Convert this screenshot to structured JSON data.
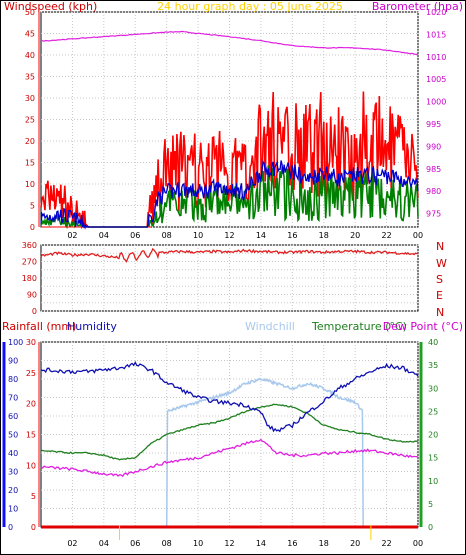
{
  "window": {
    "title": "24 hour graph day : 05 June 2025"
  },
  "labels": {
    "windspeed": "Windspeed (kph)",
    "barometer": "Barometer (hpa)",
    "rainfall": "Rainfall (mm)",
    "humidity": "Humidity",
    "windchill": "Windchill",
    "temperature": "Temperature (°C)",
    "dewpoint": "Dew Point (°C)",
    "compass": [
      "N",
      "W",
      "S",
      "E",
      "N"
    ]
  },
  "colors": {
    "gust": "#ff0000",
    "avg_wind": "#008000",
    "wind_mid": "#0000cc",
    "barometer": "#e020e0",
    "direction": "#e02020",
    "humidity": "#1010b0",
    "windchill": "#a8c8ec",
    "temperature": "#208020",
    "dewpoint": "#e020e0",
    "rain": "#e00000",
    "grid": "#c8c8c8",
    "title": "#ffd000"
  },
  "chart_data": [
    {
      "type": "line",
      "title": "24 hour graph day : 05 June 2025",
      "xlabel": "",
      "x_ticks": [
        "02",
        "04",
        "06",
        "08",
        "10",
        "12",
        "14",
        "16",
        "18",
        "20",
        "22",
        "00"
      ],
      "y_left_label": "Windspeed (kph)",
      "y_left_range": [
        0,
        50
      ],
      "y_left_ticks": [
        "0",
        "5",
        "10",
        "15",
        "20",
        "25",
        "30",
        "35",
        "40",
        "45",
        "50"
      ],
      "y_right_label": "Barometer (hpa)",
      "y_right_range": [
        972,
        1020
      ],
      "y_right_ticks": [
        "975",
        "980",
        "985",
        "990",
        "995",
        "1000",
        "1005",
        "1010",
        "1015",
        "1020"
      ],
      "grid": true,
      "series": [
        {
          "name": "Barometer (hpa)",
          "axis": "right",
          "x": [
            0,
            2,
            4,
            6,
            8,
            9,
            10,
            12,
            14,
            16,
            18,
            20,
            22,
            24
          ],
          "values": [
            1013.5,
            1014.0,
            1014.5,
            1015.0,
            1015.5,
            1015.6,
            1015.2,
            1014.5,
            1013.6,
            1012.5,
            1012.0,
            1012.0,
            1011.5,
            1010.5
          ]
        },
        {
          "axis": "left",
          "x": [
            0,
            1,
            2,
            3,
            4,
            5,
            6,
            7,
            7.5,
            8,
            9,
            10,
            11,
            12,
            13,
            14,
            15,
            16,
            17,
            18,
            19,
            20,
            21,
            22,
            23,
            24
          ],
          "values": [
            4,
            5,
            3,
            0,
            0,
            0,
            0,
            3,
            8,
            10,
            11,
            10,
            11,
            12,
            10,
            15,
            17,
            16,
            14,
            16,
            14,
            15,
            15,
            15,
            13,
            11
          ]
        },
        {
          "axis": "left",
          "x": [
            0,
            1,
            2,
            3,
            4,
            5,
            6,
            7,
            7.5,
            8,
            9,
            10,
            11,
            12,
            13,
            14,
            15,
            16,
            17,
            18,
            19,
            20,
            21,
            22,
            23,
            24
          ],
          "values": [
            1,
            2,
            1,
            0,
            0,
            0,
            0,
            1,
            4,
            5,
            6,
            5,
            6,
            6,
            5,
            8,
            9,
            8,
            7,
            8,
            7,
            8,
            8,
            8,
            7,
            6
          ]
        },
        {
          "axis": "left",
          "x": [
            0,
            1,
            2,
            3,
            4,
            5,
            6,
            7,
            7.5,
            8,
            9,
            10,
            11,
            12,
            13,
            14,
            15,
            16,
            17,
            18,
            19,
            20,
            21,
            22,
            23,
            24
          ],
          "values": [
            2,
            3,
            2,
            0,
            0,
            0,
            0,
            2,
            7,
            8,
            9,
            8,
            9,
            9,
            8,
            13,
            14,
            13,
            11,
            13,
            11,
            12,
            12,
            12,
            11,
            9
          ]
        }
      ]
    },
    {
      "type": "line",
      "xlabel": "",
      "y_range": [
        0,
        360
      ],
      "y_ticks": [
        "0",
        "90",
        "180",
        "270",
        "360"
      ],
      "right_labels": [
        "N",
        "W",
        "S",
        "E",
        "N"
      ],
      "grid": true,
      "series": [
        {
          "x": [
            0,
            1,
            2,
            3,
            4,
            5,
            6,
            7,
            8,
            9,
            10,
            11,
            12,
            13,
            14,
            15,
            16,
            17,
            18,
            19,
            20,
            21,
            22,
            23,
            24
          ],
          "values": [
            300,
            315,
            305,
            310,
            300,
            290,
            300,
            315,
            320,
            325,
            320,
            325,
            320,
            330,
            325,
            320,
            320,
            325,
            320,
            325,
            325,
            320,
            320,
            315,
            310
          ]
        }
      ]
    },
    {
      "type": "line",
      "xlabel": "",
      "x_ticks": [
        "02",
        "04",
        "06",
        "08",
        "10",
        "12",
        "14",
        "16",
        "18",
        "20",
        "22",
        "00"
      ],
      "y_left_label": "Humidity",
      "y_left_range": [
        0,
        100
      ],
      "y_left_ticks": [
        "0",
        "10",
        "20",
        "30",
        "40",
        "50",
        "60",
        "70",
        "80",
        "90",
        "100"
      ],
      "y_rain_label": "Rainfall (mm)",
      "y_rain_range": [
        0,
        30
      ],
      "y_rain_ticks": [
        "0",
        "5",
        "10",
        "15",
        "20",
        "25",
        "30"
      ],
      "y_right_label": "Temperature (°C)",
      "y_right_range": [
        0,
        40
      ],
      "y_right_ticks": [
        "0",
        "5",
        "10",
        "15",
        "20",
        "25",
        "30",
        "35",
        "40"
      ],
      "grid": true,
      "series": [
        {
          "name": "Humidity",
          "axis": "left",
          "x": [
            0,
            2,
            3,
            4,
            5,
            6,
            7,
            8,
            9,
            10,
            11,
            12,
            13,
            14,
            14.5,
            15,
            16,
            17,
            18,
            19,
            20,
            21,
            22,
            23,
            24
          ],
          "values": [
            85,
            84,
            84,
            85,
            86,
            88,
            85,
            78,
            74,
            70,
            68,
            67,
            66,
            62,
            54,
            52,
            55,
            62,
            68,
            75,
            80,
            84,
            87,
            86,
            82
          ]
        },
        {
          "name": "Windchill",
          "axis": "right",
          "x": [
            8,
            8.01,
            9,
            10,
            11,
            12,
            13,
            14,
            15,
            16,
            17,
            18,
            19,
            20,
            20.5,
            20.51
          ],
          "values": [
            0,
            25,
            26,
            27,
            28,
            29,
            31,
            32,
            31,
            30,
            31,
            30,
            28,
            27,
            25,
            0
          ]
        },
        {
          "name": "Temperature (°C)",
          "axis": "right",
          "x": [
            0,
            2,
            3,
            4,
            5,
            6,
            7,
            8,
            9,
            10,
            11,
            12,
            13,
            14,
            15,
            16,
            17,
            18,
            19,
            20,
            21,
            22,
            23,
            24
          ],
          "values": [
            16.5,
            16,
            16,
            15.5,
            14.5,
            15,
            18,
            20,
            21,
            22,
            22.5,
            23.5,
            25,
            26,
            26.5,
            26,
            24.5,
            22,
            21,
            20.5,
            20,
            19,
            18.5,
            18.5
          ]
        },
        {
          "name": "Dew Point (°C)",
          "axis": "right",
          "x": [
            0,
            2,
            3,
            4,
            5,
            6,
            7,
            8,
            9,
            10,
            11,
            12,
            13,
            14,
            15,
            16,
            17,
            18,
            19,
            20,
            21,
            22,
            23,
            24
          ],
          "values": [
            13,
            12.5,
            12,
            11.5,
            11,
            12,
            13,
            14,
            14.5,
            15,
            16,
            17,
            18,
            19,
            16,
            15.5,
            15.5,
            16,
            16,
            16.5,
            16.5,
            16,
            15.5,
            15
          ]
        },
        {
          "name": "Rainfall (mm)",
          "axis": "rain",
          "x": [
            0,
            24
          ],
          "values": [
            0,
            0
          ]
        }
      ]
    }
  ]
}
